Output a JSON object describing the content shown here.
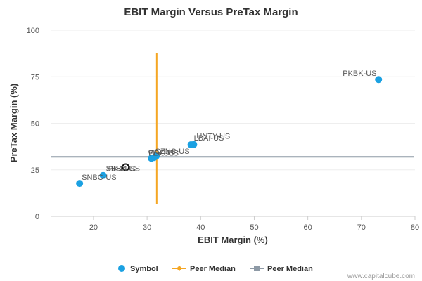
{
  "chart_data": {
    "type": "scatter",
    "title": "EBIT Margin Versus PreTax Margin",
    "xlabel": "EBIT Margin (%)",
    "ylabel": "PreTax Margin (%)",
    "xlim": [
      12,
      80
    ],
    "ylim": [
      0,
      100
    ],
    "x_ticks": [
      20,
      30,
      40,
      50,
      60,
      70,
      80
    ],
    "y_ticks": [
      0,
      25,
      50,
      75,
      100
    ],
    "series": [
      {
        "name": "Symbol",
        "color": "#1ba1e2",
        "points": [
          {
            "label": "PKBK-US",
            "x": 73.2,
            "y": 73.5,
            "highlight": false
          },
          {
            "label": "LBAI-US",
            "x": 38.2,
            "y": 38.5,
            "highlight": false
          },
          {
            "label": "UNTY-US",
            "x": 38.7,
            "y": 38.6,
            "highlight": false
          },
          {
            "label": "CZNC-US",
            "x": 31.7,
            "y": 32.4,
            "highlight": false
          },
          {
            "label": "VLY-US",
            "x": 31.3,
            "y": 31.6,
            "highlight": false
          },
          {
            "label": "PGC-US",
            "x": 30.8,
            "y": 31.2,
            "highlight": false
          },
          {
            "label": "BKJ-US",
            "x": 26.0,
            "y": 26.4,
            "highlight": true
          },
          {
            "label": "SBBX-US",
            "x": 21.8,
            "y": 22.0,
            "highlight": false
          },
          {
            "label": "SNBC-US",
            "x": 17.4,
            "y": 17.7,
            "highlight": false
          }
        ]
      }
    ],
    "peer_median_x": {
      "name": "Peer Median",
      "value": 31.8,
      "color": "#f5a623"
    },
    "peer_median_y": {
      "name": "Peer Median",
      "value": 32.0,
      "color": "#8e9aa6"
    },
    "legend": [
      "Symbol",
      "Peer Median",
      "Peer Median"
    ],
    "legend_position": "bottom"
  },
  "watermark": "www.capitalcube.com"
}
